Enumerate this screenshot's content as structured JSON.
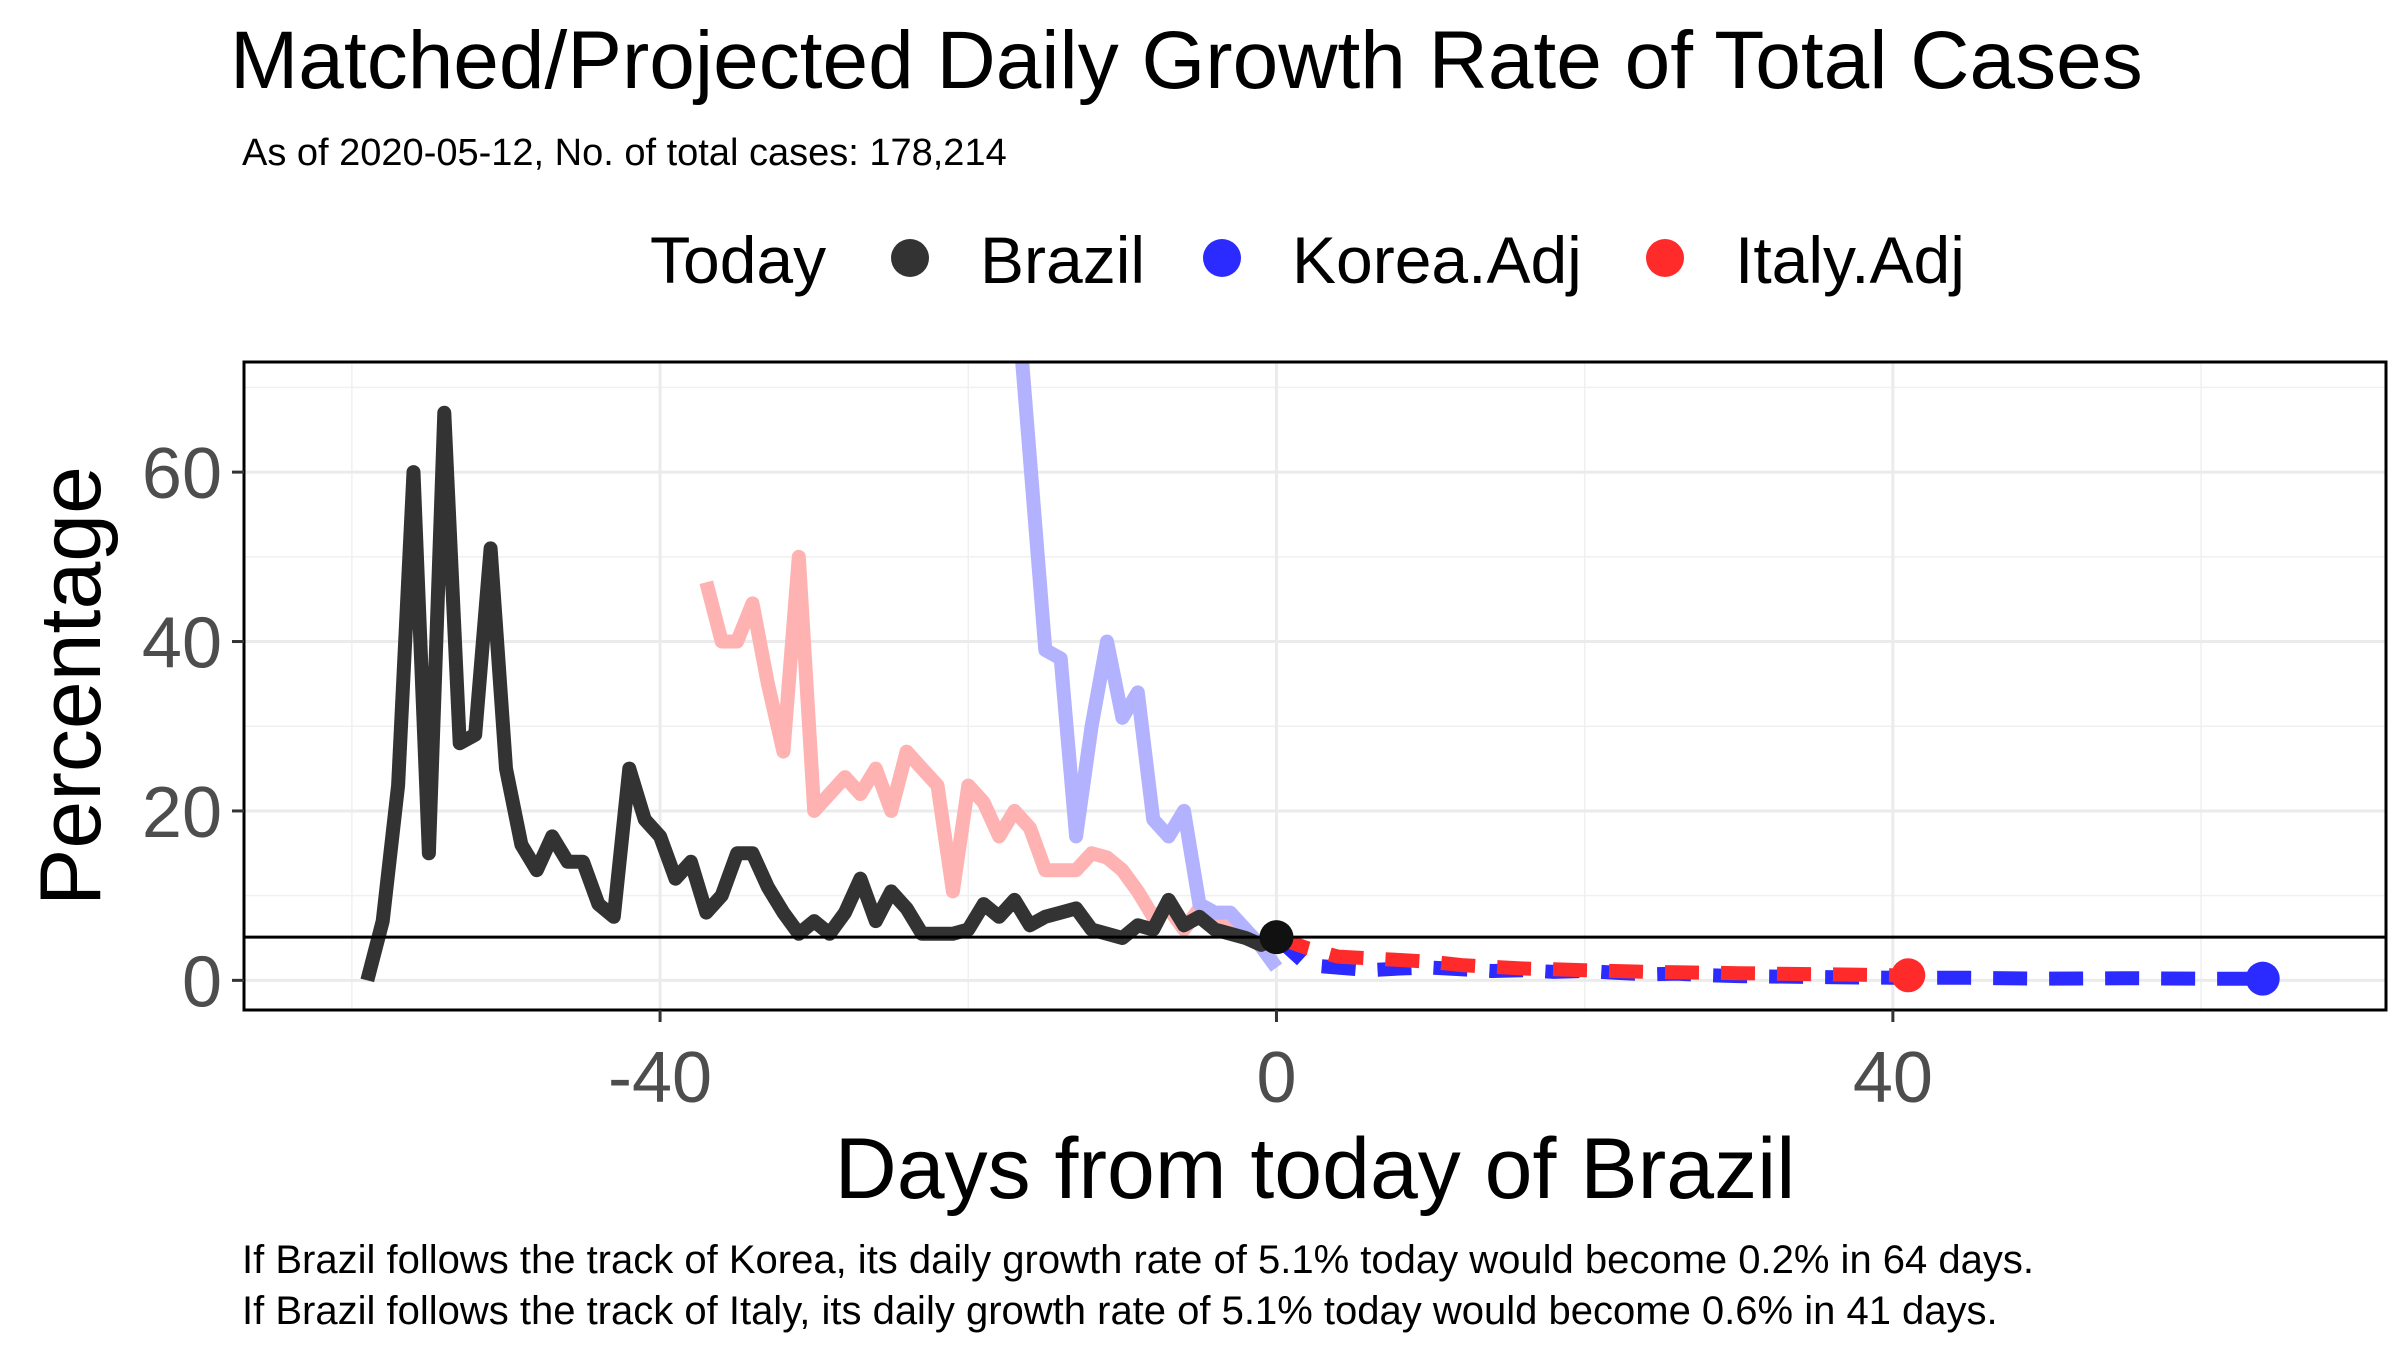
{
  "chart_data": {
    "type": "line",
    "title": "Matched/Projected Daily Growth Rate of Total Cases",
    "subtitle": "As of 2020-05-12, No. of total cases: 178,214",
    "xlabel": "Days from today of Brazil",
    "ylabel": "Percentage",
    "xlim": [
      -67,
      72
    ],
    "ylim": [
      -3.5,
      73
    ],
    "x_ticks": [
      -40,
      0,
      40
    ],
    "x_tick_labels": [
      "-40",
      "0",
      "40"
    ],
    "y_ticks": [
      0,
      20,
      40,
      60
    ],
    "y_tick_labels": [
      "0",
      "20",
      "40",
      "60"
    ],
    "grid": true,
    "legend": {
      "position": "top",
      "title": "Today",
      "entries": [
        {
          "label": "Brazil",
          "color": "#333333"
        },
        {
          "label": "Korea.Adj",
          "color": "#2b2bff"
        },
        {
          "label": "Italy.Adj",
          "color": "#ff2b2b"
        }
      ]
    },
    "reference_line": {
      "y": 5.1
    },
    "today_point": {
      "x": 0,
      "y": 5.1
    },
    "series": [
      {
        "name": "Brazil",
        "color": "#333333",
        "x": [
          -59,
          -58,
          -57,
          -56,
          -55,
          -54,
          -53,
          -52,
          -51,
          -50,
          -49,
          -48,
          -47,
          -46,
          -45,
          -44,
          -43,
          -42,
          -41,
          -40,
          -39,
          -38,
          -37,
          -36,
          -35,
          -34,
          -33,
          -32,
          -31,
          -30,
          -29,
          -28,
          -27,
          -26,
          -25,
          -24,
          -23,
          -22,
          -21,
          -20,
          -19,
          -18,
          -17,
          -16,
          -15,
          -14,
          -13,
          -12,
          -11,
          -10,
          -9,
          -8,
          -7,
          -6,
          -5,
          -4,
          -3,
          -2,
          -1,
          0
        ],
        "y": [
          0,
          7,
          23,
          60,
          15,
          67,
          28,
          29,
          51,
          25,
          16,
          13,
          17,
          14,
          14,
          9,
          7.5,
          25,
          19,
          17,
          12,
          14,
          8,
          10,
          15,
          15,
          11,
          8,
          5.5,
          7,
          5.5,
          8,
          12,
          7,
          10.5,
          8.5,
          5.5,
          5.5,
          5.5,
          6,
          9,
          7.5,
          9.5,
          6.5,
          7.5,
          8,
          8.5,
          6,
          5.5,
          5,
          6.5,
          6,
          9.5,
          6.5,
          7.5,
          6,
          5.5,
          5,
          4.2,
          5.1
        ]
      },
      {
        "name": "Italy (matched)",
        "color": "#ffb2b2",
        "x": [
          -37,
          -36,
          -35,
          -34,
          -33,
          -32,
          -31,
          -30,
          -29,
          -28,
          -27,
          -26,
          -25,
          -24,
          -23,
          -22,
          -21,
          -20,
          -19,
          -18,
          -17,
          -16,
          -15,
          -14,
          -13,
          -12,
          -11,
          -10,
          -9,
          -8,
          -7,
          -6,
          -5,
          -4,
          -3,
          -2,
          -1,
          0
        ],
        "y": [
          47,
          40,
          40,
          44.5,
          35,
          27,
          50,
          20,
          22,
          24,
          22,
          25,
          20,
          27,
          25,
          23,
          10.5,
          23,
          21,
          17,
          20,
          18,
          13,
          13,
          13,
          15,
          14.5,
          13,
          10.5,
          7.5,
          8.5,
          6,
          8.5,
          7,
          6,
          5,
          4.5,
          5.1
        ]
      },
      {
        "name": "Korea (matched)",
        "color": "#b2b2ff",
        "x": [
          -16.5,
          -15,
          -14,
          -13,
          -12,
          -11,
          -10,
          -9,
          -8,
          -7,
          -6,
          -5,
          -4,
          -3,
          -2,
          -1,
          0
        ],
        "y": [
          73,
          39,
          38,
          17,
          30,
          40,
          31,
          34,
          19,
          17,
          20,
          9,
          8,
          8,
          6,
          4,
          1.5
        ]
      },
      {
        "name": "Italy.Adj (projected)",
        "color": "#ff2b2b",
        "x": [
          0,
          2,
          4,
          6,
          8,
          10,
          12,
          14,
          16,
          18,
          20,
          22,
          24,
          26,
          28,
          30,
          32,
          34,
          36,
          38,
          40,
          41
        ],
        "y": [
          5.1,
          3.8,
          2.8,
          2.6,
          2.4,
          2.2,
          1.8,
          1.6,
          1.4,
          1.3,
          1.2,
          1.1,
          1,
          0.95,
          0.9,
          0.85,
          0.8,
          0.75,
          0.7,
          0.65,
          0.6,
          0.6
        ]
      },
      {
        "name": "Korea.Adj (projected)",
        "color": "#2b2bff",
        "x": [
          0,
          2,
          4,
          6,
          8,
          10,
          12,
          14,
          16,
          18,
          20,
          22,
          24,
          26,
          28,
          30,
          35,
          40,
          45,
          50,
          55,
          60,
          64
        ],
        "y": [
          5.1,
          1.8,
          1.5,
          1.2,
          1.4,
          1.5,
          1.3,
          1.1,
          1.2,
          1,
          1.1,
          0.9,
          0.7,
          0.8,
          0.6,
          0.5,
          0.4,
          0.3,
          0.3,
          0.2,
          0.25,
          0.2,
          0.2
        ]
      }
    ],
    "end_points": [
      {
        "label": "Italy.Adj",
        "x": 41,
        "y": 0.6,
        "color": "#ff2b2b"
      },
      {
        "label": "Korea.Adj",
        "x": 64,
        "y": 0.2,
        "color": "#2b2bff"
      }
    ]
  },
  "notes": [
    "If Brazil follows the track of Korea, its daily growth rate of 5.1% today would become 0.2% in 64 days.",
    "If Brazil follows the track of Italy, its daily growth rate of 5.1% today would become 0.6% in 41 days."
  ]
}
